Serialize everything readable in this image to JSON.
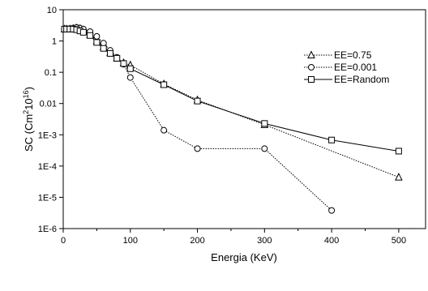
{
  "chart_data": {
    "type": "line",
    "title": "",
    "xlabel": "Energia (KeV)",
    "ylabel_main": "SC (Cm",
    "ylabel_sup": "2",
    "ylabel_mid": "10",
    "ylabel_sup2": "16",
    "ylabel_end": ")",
    "y_scale": "log",
    "xlim": [
      0,
      540
    ],
    "ylim": [
      1e-06,
      10
    ],
    "x_ticks": [
      0,
      100,
      200,
      300,
      400,
      500
    ],
    "x_tick_labels": [
      "0",
      "100",
      "200",
      "300",
      "400",
      "500"
    ],
    "y_ticks": [
      1e-06,
      1e-05,
      0.0001,
      0.001,
      0.01,
      0.1,
      1,
      10
    ],
    "y_tick_labels": [
      "1E-6",
      "1E-5",
      "1E-4",
      "1E-3",
      "0.01",
      "0.1",
      "1",
      "10"
    ],
    "grid": false,
    "legend_position": "right",
    "series": [
      {
        "name": "EE=0.75",
        "marker": "triangle",
        "line_style": "dotted",
        "x": [
          2,
          5,
          10,
          15,
          20,
          25,
          30,
          40,
          50,
          60,
          70,
          80,
          90,
          100,
          150,
          200,
          300,
          500
        ],
        "y": [
          2.4,
          2.4,
          2.4,
          2.5,
          2.6,
          2.5,
          2.2,
          1.6,
          1.0,
          0.65,
          0.42,
          0.28,
          0.2,
          0.17,
          0.042,
          0.013,
          0.0021,
          4.4e-05
        ]
      },
      {
        "name": "EE=0.001",
        "marker": "circle",
        "line_style": "dotted",
        "x": [
          2,
          5,
          10,
          15,
          20,
          25,
          30,
          40,
          50,
          60,
          70,
          80,
          90,
          100,
          150,
          200,
          300,
          400
        ],
        "y": [
          2.4,
          2.45,
          2.5,
          2.6,
          2.7,
          2.6,
          2.4,
          2.0,
          1.4,
          0.85,
          0.5,
          0.3,
          0.18,
          0.068,
          0.0014,
          0.00036,
          0.00036,
          3.8e-06
        ]
      },
      {
        "name": "EE=Random",
        "marker": "square",
        "line_style": "solid",
        "x": [
          2,
          5,
          10,
          15,
          20,
          25,
          30,
          40,
          50,
          60,
          70,
          80,
          90,
          100,
          150,
          200,
          300,
          400,
          500
        ],
        "y": [
          2.4,
          2.4,
          2.4,
          2.4,
          2.3,
          2.1,
          1.9,
          1.5,
          0.9,
          0.58,
          0.4,
          0.28,
          0.19,
          0.13,
          0.04,
          0.012,
          0.0023,
          0.00068,
          0.0003
        ]
      }
    ]
  }
}
